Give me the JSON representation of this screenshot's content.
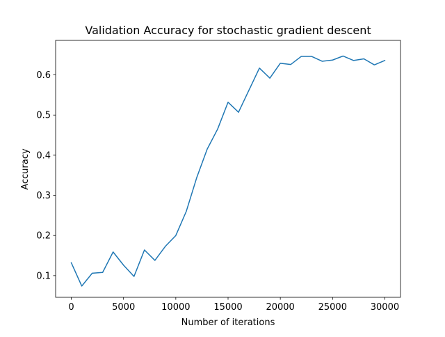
{
  "chart_data": {
    "type": "line",
    "title": "Validation Accuracy for stochastic gradient descent",
    "xlabel": "Number of iterations",
    "ylabel": "Accuracy",
    "xlim": [
      -1500,
      31500
    ],
    "ylim": [
      0.046,
      0.686
    ],
    "xticks": [
      0,
      5000,
      10000,
      15000,
      20000,
      25000,
      30000
    ],
    "xtick_labels": [
      "0",
      "5000",
      "10000",
      "15000",
      "20000",
      "25000",
      "30000"
    ],
    "yticks": [
      0.1,
      0.2,
      0.3,
      0.4,
      0.5,
      0.6
    ],
    "ytick_labels": [
      "0.1",
      "0.2",
      "0.3",
      "0.4",
      "0.5",
      "0.6"
    ],
    "grid": false,
    "series": [
      {
        "color": "#1f77b4",
        "x": [
          0,
          1000,
          2000,
          3000,
          4000,
          5000,
          6000,
          7000,
          8000,
          9000,
          10000,
          11000,
          12000,
          13000,
          14000,
          15000,
          16000,
          17000,
          18000,
          19000,
          20000,
          21000,
          22000,
          23000,
          24000,
          25000,
          26000,
          27000,
          28000,
          29000,
          30000
        ],
        "y": [
          0.132,
          0.074,
          0.106,
          0.108,
          0.159,
          0.126,
          0.098,
          0.164,
          0.138,
          0.173,
          0.2,
          0.26,
          0.344,
          0.415,
          0.465,
          0.532,
          0.507,
          0.562,
          0.617,
          0.592,
          0.629,
          0.626,
          0.646,
          0.646,
          0.634,
          0.637,
          0.647,
          0.636,
          0.64,
          0.625,
          0.636
        ]
      }
    ]
  }
}
